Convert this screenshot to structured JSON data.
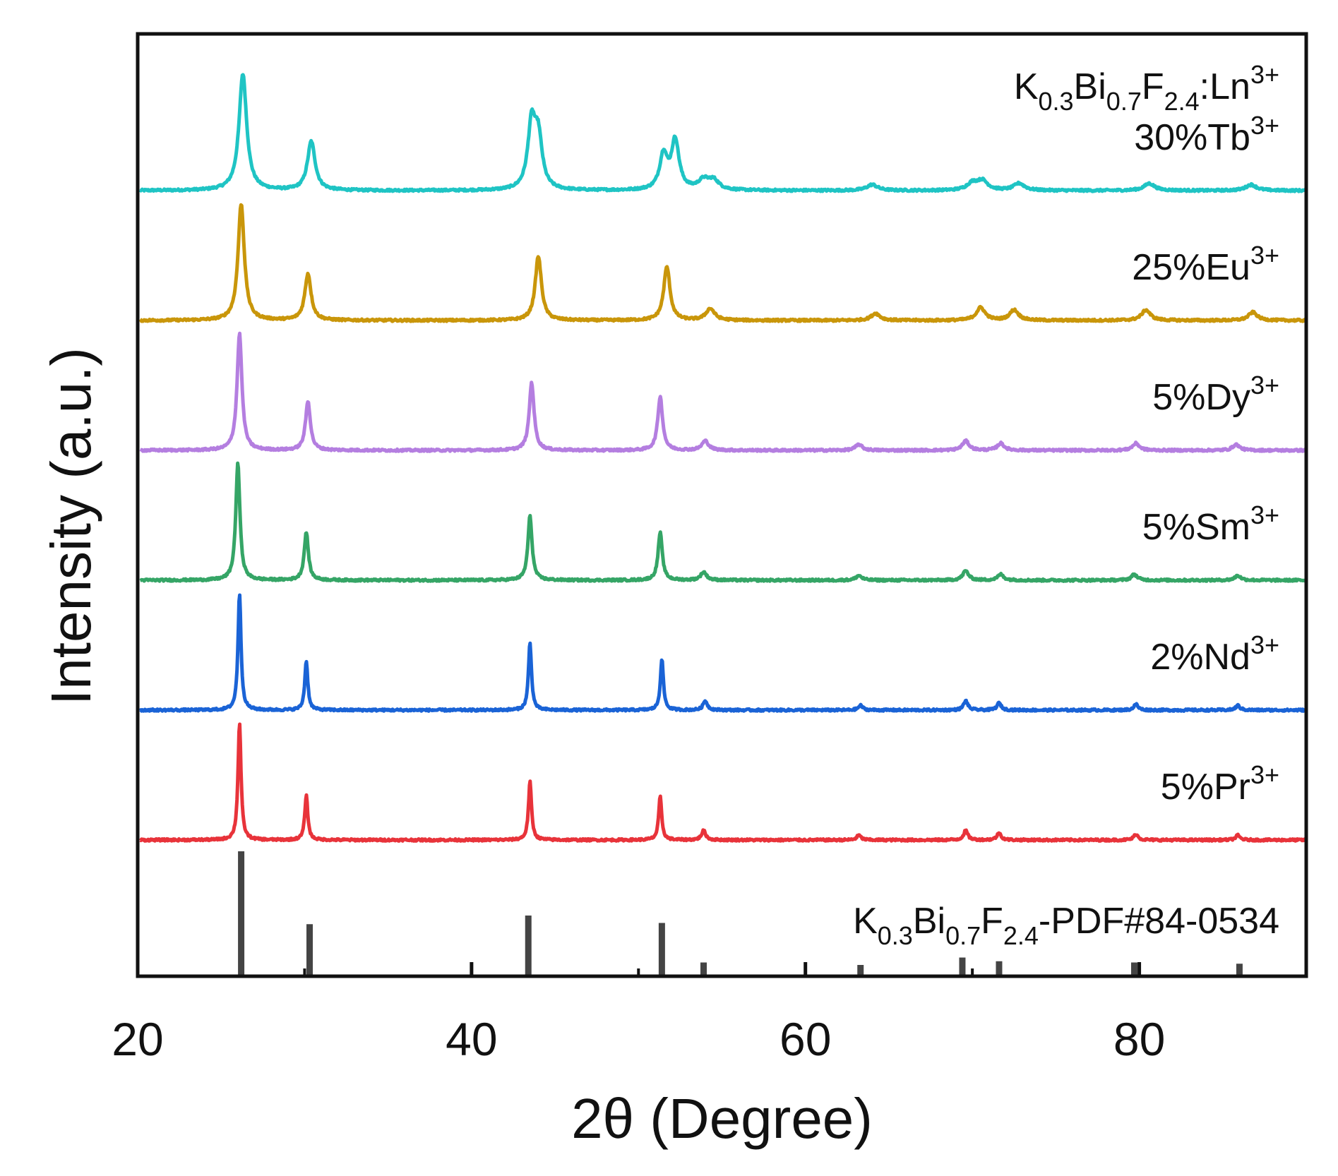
{
  "chart_data": {
    "type": "line",
    "title": "",
    "header": {
      "base": "K",
      "parts": [
        {
          "t": "0.3",
          "s": "sub"
        },
        {
          "t": "Bi",
          "s": ""
        },
        {
          "t": "0.7",
          "s": "sub"
        },
        {
          "t": "F",
          "s": ""
        },
        {
          "t": "2.4",
          "s": "sub"
        },
        {
          "t": ":Ln",
          "s": ""
        },
        {
          "t": "3+",
          "s": "sup"
        }
      ]
    },
    "xlabel": "2θ (Degree)",
    "ylabel": "Intensity (a.u.)",
    "xlim": [
      20,
      90
    ],
    "xticks": [
      20,
      40,
      60,
      80
    ],
    "xtick_labels": [
      "20",
      "40",
      "60",
      "80"
    ],
    "series": [
      {
        "name": "30%Tb3+",
        "label_main": "30%Tb",
        "label_sup": "3+",
        "color": "#1fc4c4",
        "sharp": 0.55,
        "offset": 5,
        "peaks": [
          [
            26.3,
            1.0
          ],
          [
            30.4,
            0.42
          ],
          [
            43.6,
            0.55
          ],
          [
            44.0,
            0.42
          ],
          [
            51.5,
            0.3
          ],
          [
            52.2,
            0.42
          ],
          [
            53.9,
            0.08
          ],
          [
            54.5,
            0.08
          ],
          [
            64.0,
            0.05
          ],
          [
            70.0,
            0.06
          ],
          [
            70.6,
            0.08
          ],
          [
            72.8,
            0.06
          ],
          [
            80.6,
            0.06
          ],
          [
            86.7,
            0.05
          ]
        ]
      },
      {
        "name": "25%Eu3+",
        "label_main": "25%Eu",
        "label_sup": "3+",
        "color": "#c9960a",
        "sharp": 0.45,
        "offset": 4,
        "peaks": [
          [
            26.2,
            1.0
          ],
          [
            30.2,
            0.4
          ],
          [
            44.0,
            0.55
          ],
          [
            51.7,
            0.46
          ],
          [
            54.3,
            0.1
          ],
          [
            64.2,
            0.06
          ],
          [
            70.5,
            0.11
          ],
          [
            72.5,
            0.09
          ],
          [
            80.4,
            0.09
          ],
          [
            86.8,
            0.07
          ]
        ]
      },
      {
        "name": "5%Dy3+",
        "label_main": "5%Dy",
        "label_sup": "3+",
        "color": "#b47ee0",
        "sharp": 0.35,
        "offset": 3,
        "peaks": [
          [
            26.1,
            1.0
          ],
          [
            30.2,
            0.42
          ],
          [
            43.6,
            0.58
          ],
          [
            51.3,
            0.46
          ],
          [
            54.0,
            0.08
          ],
          [
            63.2,
            0.05
          ],
          [
            69.6,
            0.08
          ],
          [
            71.7,
            0.06
          ],
          [
            79.8,
            0.06
          ],
          [
            85.8,
            0.05
          ]
        ]
      },
      {
        "name": "5%Sm3+",
        "label_main": "5%Sm",
        "label_sup": "3+",
        "color": "#35a566",
        "sharp": 0.3,
        "offset": 2,
        "peaks": [
          [
            26.0,
            1.0
          ],
          [
            30.1,
            0.41
          ],
          [
            43.5,
            0.55
          ],
          [
            51.3,
            0.41
          ],
          [
            53.9,
            0.07
          ],
          [
            63.2,
            0.04
          ],
          [
            69.6,
            0.08
          ],
          [
            71.7,
            0.05
          ],
          [
            79.7,
            0.05
          ],
          [
            85.9,
            0.04
          ]
        ]
      },
      {
        "name": "2%Nd3+",
        "label_main": "2%Nd",
        "label_sup": "3+",
        "color": "#1a63d6",
        "sharp": 0.22,
        "offset": 1,
        "peaks": [
          [
            26.1,
            1.0
          ],
          [
            30.1,
            0.42
          ],
          [
            43.5,
            0.58
          ],
          [
            51.4,
            0.44
          ],
          [
            54.0,
            0.08
          ],
          [
            63.3,
            0.04
          ],
          [
            69.6,
            0.08
          ],
          [
            71.6,
            0.06
          ],
          [
            79.8,
            0.05
          ],
          [
            85.9,
            0.04
          ]
        ]
      },
      {
        "name": "5%Pr3+",
        "label_main": "5%Pr",
        "label_sup": "3+",
        "color": "#e8333a",
        "sharp": 0.22,
        "offset": 0,
        "peaks": [
          [
            26.1,
            1.0
          ],
          [
            30.1,
            0.38
          ],
          [
            43.5,
            0.5
          ],
          [
            51.3,
            0.37
          ],
          [
            53.9,
            0.08
          ],
          [
            63.2,
            0.04
          ],
          [
            69.6,
            0.08
          ],
          [
            71.6,
            0.06
          ],
          [
            79.8,
            0.05
          ],
          [
            85.9,
            0.04
          ]
        ]
      }
    ],
    "reference": {
      "name": "K0.3Bi0.7F2.4-PDF#84-0534",
      "label_parts": [
        {
          "t": "K",
          "s": ""
        },
        {
          "t": "0.3",
          "s": "sub"
        },
        {
          "t": "Bi",
          "s": ""
        },
        {
          "t": "0.7",
          "s": "sub"
        },
        {
          "t": "F",
          "s": ""
        },
        {
          "t": "2.4",
          "s": "sub"
        },
        {
          "t": "-PDF#84-0534",
          "s": ""
        }
      ],
      "color": "#444444",
      "lines": [
        [
          26.2,
          100
        ],
        [
          30.3,
          41
        ],
        [
          43.4,
          48
        ],
        [
          51.4,
          42
        ],
        [
          53.9,
          10
        ],
        [
          63.3,
          8
        ],
        [
          69.4,
          14
        ],
        [
          71.6,
          11
        ],
        [
          79.7,
          10
        ],
        [
          86.0,
          9
        ]
      ]
    }
  }
}
